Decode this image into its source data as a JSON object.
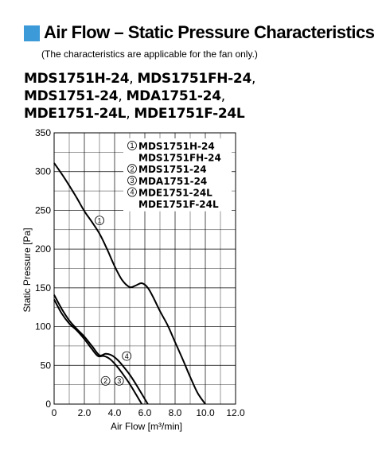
{
  "header": {
    "title": "Air Flow – Static Pressure Characteristics",
    "subtitle": "(The characteristics are applicable for the fan only.)",
    "accent_color": "#3d9ad8"
  },
  "models": {
    "line1": [
      "MDS1751H-24",
      "MDS1751FH-24"
    ],
    "line2": [
      "MDS1751-24",
      "MDA1751-24"
    ],
    "line3": [
      "MDE1751-24L",
      "MDE1751F-24L"
    ]
  },
  "chart_data": {
    "type": "line",
    "xlabel": "Air Flow [m³/min]",
    "ylabel": "Static Pressure [Pa]",
    "xlim": [
      0,
      12
    ],
    "ylim": [
      0,
      350
    ],
    "xticks": [
      "0",
      "2.0",
      "4.0",
      "6.0",
      "8.0",
      "10.0",
      "12.0"
    ],
    "yticks": [
      "0",
      "50",
      "100",
      "150",
      "200",
      "250",
      "300",
      "350"
    ],
    "grid": true,
    "legend_position": "top-right",
    "legend": [
      {
        "marker": "1",
        "lines": [
          "MDS1751H-24",
          "MDS1751FH-24"
        ]
      },
      {
        "marker": "2",
        "lines": [
          "MDS1751-24"
        ]
      },
      {
        "marker": "3",
        "lines": [
          "MDA1751-24"
        ]
      },
      {
        "marker": "4",
        "lines": [
          "MDE1751-24L",
          "MDE1751F-24L"
        ]
      }
    ],
    "series": [
      {
        "marker": "1",
        "x": [
          0,
          0.5,
          1.0,
          1.5,
          2.0,
          2.5,
          3.0,
          3.5,
          4.0,
          4.5,
          5.0,
          5.4,
          5.8,
          6.2,
          6.6,
          7.0,
          7.5,
          8.0,
          8.5,
          9.0,
          9.5,
          10.0
        ],
        "y": [
          311,
          297,
          282,
          266,
          249,
          235,
          220,
          200,
          178,
          160,
          151,
          153,
          156,
          150,
          136,
          120,
          102,
          80,
          58,
          35,
          14,
          0
        ]
      },
      {
        "marker": "2/3",
        "x": [
          0,
          0.5,
          1.0,
          1.5,
          2.0,
          2.5,
          2.9,
          3.3,
          3.7,
          4.1,
          4.5,
          5.0,
          5.4,
          5.8
        ],
        "y": [
          135,
          117,
          104,
          95,
          84,
          71,
          62,
          62,
          58,
          50,
          40,
          26,
          13,
          0
        ]
      },
      {
        "marker": "4",
        "x": [
          0,
          0.5,
          1.0,
          1.5,
          2.0,
          2.5,
          3.0,
          3.4,
          3.8,
          4.2,
          4.6,
          5.0,
          5.4,
          5.8,
          6.2
        ],
        "y": [
          141,
          123,
          108,
          97,
          87,
          75,
          63,
          65,
          63,
          57,
          48,
          38,
          26,
          13,
          0
        ]
      }
    ],
    "curve_labels": [
      {
        "text": "1",
        "x": 3.0,
        "y": 237
      },
      {
        "text": "4",
        "x": 4.8,
        "y": 62
      },
      {
        "text": "2",
        "x": 3.4,
        "y": 30
      },
      {
        "text": "3",
        "x": 4.3,
        "y": 30
      }
    ]
  }
}
